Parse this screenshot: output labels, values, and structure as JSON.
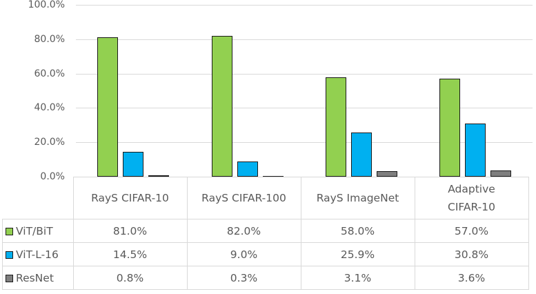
{
  "chart_data": {
    "type": "bar",
    "title": "",
    "xlabel": "",
    "ylabel": "",
    "ylim": [
      0,
      100
    ],
    "y_ticks": [
      "0.0%",
      "20.0%",
      "40.0%",
      "60.0%",
      "80.0%",
      "100.0%"
    ],
    "grid": true,
    "legend_position": "data-table",
    "categories": [
      "RayS CIFAR-10",
      "RayS CIFAR-100",
      "RayS ImageNet",
      "Adaptive CIFAR-10"
    ],
    "series": [
      {
        "name": "ViT/BiT",
        "color": "#92d050",
        "values": [
          81.0,
          82.0,
          58.0,
          57.0
        ],
        "labels": [
          "81.0%",
          "82.0%",
          "58.0%",
          "57.0%"
        ]
      },
      {
        "name": "ViT-L-16",
        "color": "#00b0f0",
        "values": [
          14.5,
          9.0,
          25.9,
          30.8
        ],
        "labels": [
          "14.5%",
          "9.0%",
          "25.9%",
          "30.8%"
        ]
      },
      {
        "name": "ResNet",
        "color": "#7f7f7f",
        "values": [
          0.8,
          0.3,
          3.1,
          3.6
        ],
        "labels": [
          "0.8%",
          "0.3%",
          "3.1%",
          "3.6%"
        ]
      }
    ]
  },
  "table": {
    "header": [
      "RayS CIFAR-10",
      "RayS CIFAR-100",
      "RayS ImageNet",
      "Adaptive\nCIFAR-10"
    ]
  }
}
